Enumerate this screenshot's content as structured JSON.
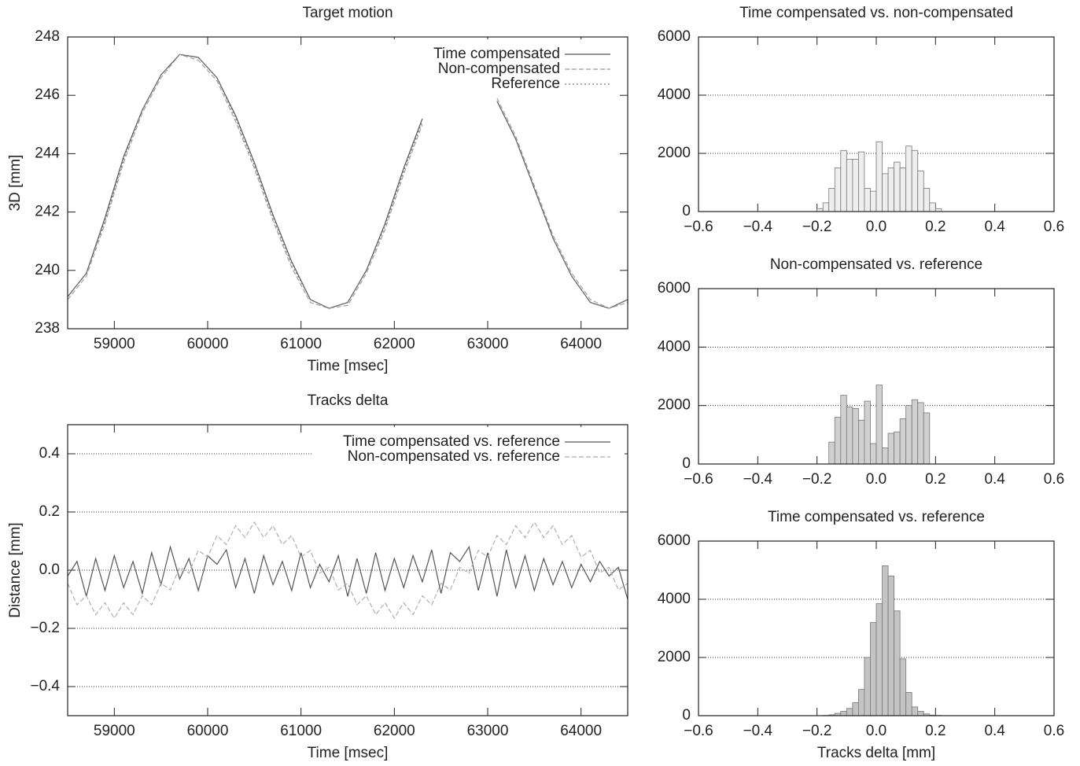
{
  "chart_data": [
    {
      "type": "line",
      "title": "Target motion",
      "xlabel": "Time [msec]",
      "ylabel": "3D [mm]",
      "x": [
        58500,
        58700,
        58900,
        59100,
        59300,
        59500,
        59700,
        59900,
        60100,
        60300,
        60500,
        60700,
        60900,
        61100,
        61300,
        61500,
        61700,
        61900,
        62100,
        62300,
        62500,
        62700,
        62900,
        63100,
        63300,
        63500,
        63700,
        63900,
        64100,
        64300,
        64500
      ],
      "series": [
        {
          "name": "Time compensated",
          "color": "#555555",
          "style": "solid",
          "values": [
            239.1,
            239.9,
            241.8,
            243.9,
            245.5,
            246.7,
            247.4,
            247.3,
            246.6,
            245.3,
            243.7,
            241.9,
            240.3,
            239.0,
            238.7,
            238.9,
            240.0,
            241.6,
            243.5,
            245.2,
            null,
            null,
            null,
            245.8,
            244.5,
            242.8,
            241.1,
            239.8,
            238.9,
            238.7,
            239.0
          ]
        },
        {
          "name": "Non-compensated",
          "color": "#999999",
          "style": "dashed",
          "values": [
            239.0,
            239.8,
            241.6,
            243.7,
            245.4,
            246.6,
            247.4,
            247.2,
            246.5,
            245.1,
            243.5,
            241.7,
            240.1,
            238.9,
            238.7,
            238.8,
            239.9,
            241.4,
            243.3,
            245.0,
            null,
            null,
            null,
            245.9,
            244.6,
            242.9,
            241.2,
            239.9,
            239.0,
            238.7,
            238.9
          ]
        },
        {
          "name": "Reference",
          "color": "#777777",
          "style": "dotted",
          "values": [
            239.1,
            239.9,
            241.7,
            243.8,
            245.5,
            246.7,
            247.4,
            247.3,
            246.6,
            245.2,
            243.6,
            241.8,
            240.2,
            239.0,
            238.7,
            238.9,
            240.0,
            241.5,
            243.4,
            245.1,
            null,
            null,
            null,
            245.8,
            244.5,
            242.8,
            241.1,
            239.8,
            238.9,
            238.7,
            239.0
          ]
        }
      ],
      "xlim": [
        58500,
        64500
      ],
      "xticks": [
        59000,
        60000,
        61000,
        62000,
        63000,
        64000
      ],
      "ylim": [
        238,
        248
      ],
      "yticks": [
        238,
        240,
        242,
        244,
        246,
        248
      ],
      "grid": false
    },
    {
      "type": "line",
      "title": "Tracks delta",
      "xlabel": "Time [msec]",
      "ylabel": "Distance [mm]",
      "x": [
        58500,
        58600,
        58700,
        58800,
        58900,
        59000,
        59100,
        59200,
        59300,
        59400,
        59500,
        59600,
        59700,
        59800,
        59900,
        60000,
        60100,
        60200,
        60300,
        60400,
        60500,
        60600,
        60700,
        60800,
        60900,
        61000,
        61100,
        61200,
        61300,
        61400,
        61500,
        61600,
        61700,
        61800,
        61900,
        62000,
        62100,
        62200,
        62300,
        62400,
        62500,
        62600,
        62700,
        62800,
        62900,
        63000,
        63100,
        63200,
        63300,
        63400,
        63500,
        63600,
        63700,
        63800,
        63900,
        64000,
        64100,
        64200,
        64300,
        64400,
        64500
      ],
      "series": [
        {
          "name": "Time compensated vs. reference",
          "color": "#555555",
          "style": "solid",
          "values": [
            -0.02,
            0.03,
            -0.09,
            0.04,
            -0.07,
            0.05,
            -0.06,
            0.03,
            -0.08,
            0.06,
            -0.05,
            0.08,
            -0.03,
            0.04,
            -0.07,
            0.05,
            0.02,
            0.07,
            -0.06,
            0.04,
            -0.08,
            0.05,
            -0.05,
            0.03,
            -0.07,
            0.06,
            -0.06,
            0.02,
            -0.04,
            0.05,
            -0.09,
            0.04,
            -0.08,
            0.06,
            -0.07,
            0.04,
            -0.06,
            0.05,
            -0.04,
            0.07,
            -0.08,
            0.06,
            0.03,
            0.08,
            -0.07,
            0.06,
            -0.09,
            0.07,
            -0.06,
            0.05,
            -0.07,
            0.04,
            -0.05,
            0.03,
            -0.06,
            0.02,
            -0.04,
            0.03,
            -0.02,
            0.01,
            -0.1
          ]
        },
        {
          "name": "Non-compensated vs. reference",
          "color": "#aaaaaa",
          "style": "dashed",
          "values": [
            -0.045,
            -0.119,
            -0.088,
            -0.153,
            -0.112,
            -0.165,
            -0.112,
            -0.153,
            -0.088,
            -0.119,
            -0.045,
            -0.068,
            0.01,
            -0.01,
            0.068,
            0.045,
            0.119,
            0.088,
            0.153,
            0.112,
            0.165,
            0.112,
            0.153,
            0.088,
            0.119,
            0.045,
            0.068,
            -0.01,
            0.01,
            -0.068,
            -0.045,
            -0.119,
            -0.088,
            -0.153,
            -0.112,
            -0.165,
            -0.112,
            -0.153,
            -0.088,
            -0.119,
            -0.045,
            -0.068,
            0.01,
            -0.01,
            0.068,
            0.045,
            0.119,
            0.088,
            0.153,
            0.112,
            0.165,
            0.112,
            0.153,
            0.088,
            0.119,
            0.045,
            0.068,
            -0.01,
            0.01,
            -0.068,
            -0.045
          ]
        }
      ],
      "xlim": [
        58500,
        64500
      ],
      "xticks": [
        59000,
        60000,
        61000,
        62000,
        63000,
        64000
      ],
      "ylim": [
        -0.5,
        0.5
      ],
      "yticks": [
        {
          "value": -0.4,
          "label": "−0.4"
        },
        {
          "value": -0.2,
          "label": "−0.2"
        },
        {
          "value": 0,
          "label": "0.0"
        },
        0.2,
        0.4
      ],
      "grid": true
    },
    {
      "type": "histogram",
      "title": "Time compensated vs. non-compensated",
      "color": "#eeeeee",
      "bins": [
        -0.2,
        -0.18,
        -0.16,
        -0.14,
        -0.12,
        -0.1,
        -0.08,
        -0.06,
        -0.04,
        -0.02,
        0,
        0.02,
        0.04,
        0.06,
        0.08,
        0.1,
        0.12,
        0.14,
        0.16,
        0.18,
        0.2,
        0.22
      ],
      "values": [
        100,
        300,
        800,
        1500,
        2100,
        1800,
        1800,
        2050,
        800,
        700,
        2400,
        1300,
        1500,
        1700,
        1500,
        2250,
        2100,
        1400,
        800,
        300,
        100
      ],
      "xlim": [
        -0.6,
        0.6
      ],
      "xticks": [
        {
          "value": -0.6,
          "label": "−0.6"
        },
        {
          "value": -0.4,
          "label": "−0.4"
        },
        {
          "value": -0.2,
          "label": "−0.2"
        },
        {
          "value": 0,
          "label": "0.0"
        },
        0.2,
        0.4,
        0.6
      ],
      "ylim": [
        0,
        6000
      ],
      "yticks": [
        0,
        2000,
        4000,
        6000
      ],
      "grid": true
    },
    {
      "type": "histogram",
      "title": "Non-compensated vs. reference",
      "color": "#d0d0d0",
      "bins": [
        -0.2,
        -0.18,
        -0.16,
        -0.14,
        -0.12,
        -0.1,
        -0.08,
        -0.06,
        -0.04,
        -0.02,
        0,
        0.02,
        0.04,
        0.06,
        0.08,
        0.1,
        0.12,
        0.14,
        0.16,
        0.18,
        0.2,
        0.22
      ],
      "values": [
        0,
        0,
        750,
        1600,
        2350,
        1950,
        1900,
        1500,
        2150,
        700,
        2700,
        550,
        1050,
        1100,
        1550,
        2000,
        2200,
        2100,
        1750,
        0,
        0
      ],
      "xlim": [
        -0.6,
        0.6
      ],
      "xticks": [
        {
          "value": -0.6,
          "label": "−0.6"
        },
        {
          "value": -0.4,
          "label": "−0.4"
        },
        {
          "value": -0.2,
          "label": "−0.2"
        },
        {
          "value": 0,
          "label": "0.0"
        },
        0.2,
        0.4,
        0.6
      ],
      "ylim": [
        0,
        6000
      ],
      "yticks": [
        0,
        2000,
        4000,
        6000
      ],
      "grid": true
    },
    {
      "type": "histogram",
      "title": "Time compensated vs. reference",
      "xlabel": "Tracks delta [mm]",
      "color": "#c4c4c4",
      "bins": [
        -0.2,
        -0.18,
        -0.16,
        -0.14,
        -0.12,
        -0.1,
        -0.08,
        -0.06,
        -0.04,
        -0.02,
        0,
        0.02,
        0.04,
        0.06,
        0.08,
        0.1,
        0.12,
        0.14,
        0.16,
        0.18,
        0.2,
        0.22
      ],
      "values": [
        0,
        10,
        30,
        80,
        150,
        250,
        450,
        900,
        2000,
        3200,
        3850,
        5150,
        4800,
        3600,
        1950,
        800,
        300,
        150,
        60,
        20,
        10
      ],
      "xlim": [
        -0.6,
        0.6
      ],
      "xticks": [
        {
          "value": -0.6,
          "label": "−0.6"
        },
        {
          "value": -0.4,
          "label": "−0.4"
        },
        {
          "value": -0.2,
          "label": "−0.2"
        },
        {
          "value": 0,
          "label": "0.0"
        },
        0.2,
        0.4,
        0.6
      ],
      "ylim": [
        0,
        6000
      ],
      "yticks": [
        0,
        2000,
        4000,
        6000
      ],
      "grid": true
    }
  ]
}
